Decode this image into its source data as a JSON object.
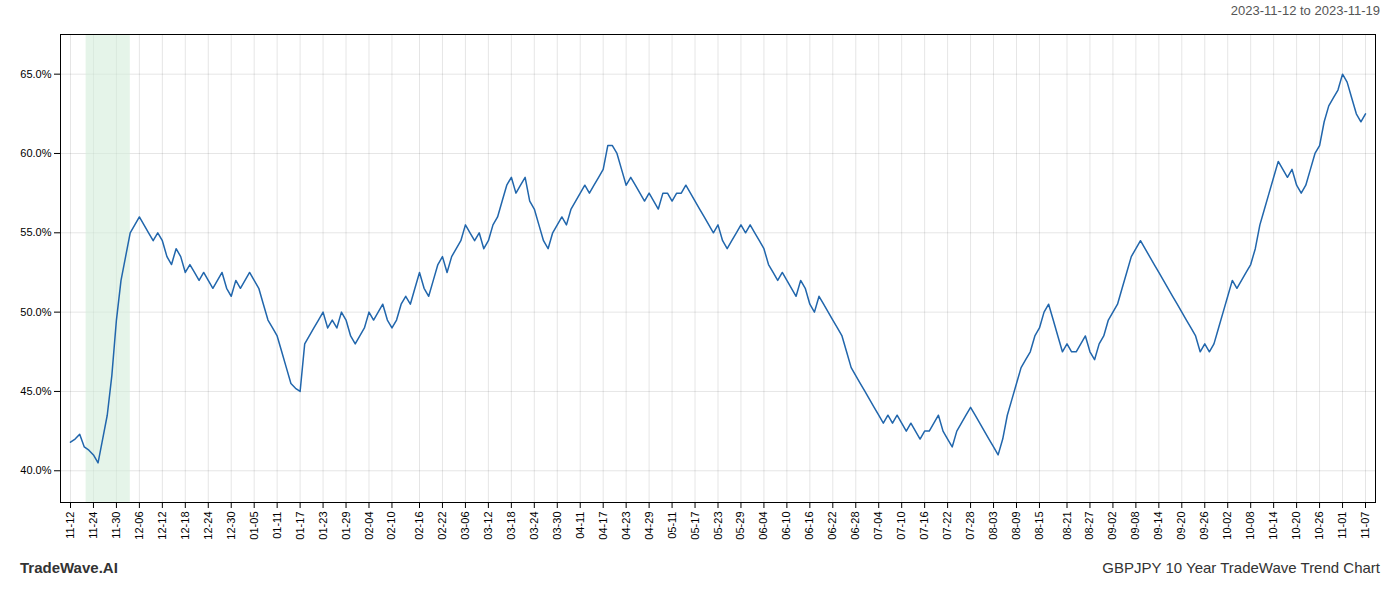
{
  "chart_data": {
    "type": "line",
    "title": "GBPJPY 10 Year TradeWave Trend Chart",
    "subtitle": "2023-11-12 to 2023-11-19",
    "annotations": [
      "TradeWave.AI"
    ],
    "color": "#2166ac",
    "grid": true,
    "highlight": {
      "x": [
        3.396,
        13.018
      ],
      "color": "#d4edda"
    },
    "ylim": [
      38.0,
      67.5
    ],
    "yticks": [
      {
        "value": 40.0,
        "label": "40.0%"
      },
      {
        "value": 45.0,
        "label": "45.0%"
      },
      {
        "value": 50.0,
        "label": "50.0%"
      },
      {
        "value": 55.0,
        "label": "55.0%"
      },
      {
        "value": 60.0,
        "label": "60.0%"
      },
      {
        "value": 65.0,
        "label": "65.0%"
      }
    ],
    "categories": [
      "11-12",
      null,
      null,
      null,
      null,
      "11-24",
      null,
      null,
      null,
      null,
      "11-30",
      null,
      null,
      null,
      null,
      "12-06",
      null,
      null,
      null,
      null,
      "12-12",
      null,
      null,
      null,
      null,
      "12-18",
      null,
      null,
      null,
      null,
      "12-24",
      null,
      null,
      null,
      null,
      "12-30",
      null,
      null,
      null,
      null,
      "01-05",
      null,
      null,
      null,
      null,
      "01-11",
      null,
      null,
      null,
      null,
      "01-17",
      null,
      null,
      null,
      null,
      "01-23",
      null,
      null,
      null,
      null,
      "01-29",
      null,
      null,
      null,
      null,
      "02-04",
      null,
      null,
      null,
      null,
      "02-10",
      null,
      null,
      null,
      null,
      null,
      "02-16",
      null,
      null,
      null,
      null,
      "02-22",
      null,
      null,
      null,
      null,
      "03-06",
      null,
      null,
      null,
      null,
      "03-12",
      null,
      null,
      null,
      null,
      "03-18",
      null,
      null,
      null,
      null,
      "03-24",
      null,
      null,
      null,
      null,
      "03-30",
      null,
      null,
      null,
      null,
      "04-11",
      null,
      null,
      null,
      null,
      "04-17",
      null,
      null,
      null,
      null,
      "04-23",
      null,
      null,
      null,
      null,
      "04-29",
      null,
      null,
      null,
      null,
      "05-11",
      null,
      null,
      null,
      null,
      "05-17",
      null,
      null,
      null,
      null,
      "05-23",
      null,
      null,
      null,
      null,
      "05-29",
      null,
      null,
      null,
      null,
      "06-04",
      null,
      null,
      null,
      null,
      "06-10",
      null,
      null,
      null,
      null,
      "06-16",
      null,
      null,
      null,
      null,
      "06-22",
      null,
      null,
      null,
      null,
      "06-28",
      null,
      null,
      null,
      null,
      "07-04",
      null,
      null,
      null,
      null,
      "07-10",
      null,
      null,
      null,
      null,
      "07-16",
      null,
      null,
      null,
      null,
      "07-22",
      null,
      null,
      null,
      null,
      "07-28",
      null,
      null,
      null,
      null,
      "08-03",
      null,
      null,
      null,
      null,
      "08-09",
      null,
      null,
      null,
      null,
      "08-15",
      null,
      null,
      null,
      null,
      null,
      "08-21",
      null,
      null,
      null,
      null,
      "08-27",
      null,
      null,
      null,
      null,
      "09-02",
      null,
      null,
      null,
      null,
      "09-08",
      null,
      null,
      null,
      null,
      "09-14",
      null,
      null,
      null,
      null,
      "09-20",
      null,
      null,
      null,
      null,
      "09-26",
      null,
      null,
      null,
      null,
      "10-02",
      null,
      null,
      null,
      null,
      "10-08",
      null,
      null,
      null,
      null,
      "10-14",
      null,
      null,
      null,
      null,
      "10-20",
      null,
      null,
      null,
      null,
      "10-26",
      null,
      null,
      null,
      null,
      "11-01",
      null,
      null,
      null,
      null,
      "11-07"
    ],
    "values": [
      41.8,
      42.0,
      42.3,
      41.5,
      41.3,
      41.0,
      40.5,
      42.0,
      43.5,
      46.0,
      49.5,
      52.0,
      53.5,
      55.0,
      55.5,
      56.0,
      55.5,
      55.0,
      54.5,
      55.0,
      54.5,
      53.5,
      53.0,
      54.0,
      53.5,
      52.5,
      53.0,
      52.5,
      52.0,
      52.5,
      52.0,
      51.5,
      52.0,
      52.5,
      51.5,
      51.0,
      52.0,
      51.5,
      52.0,
      52.5,
      52.0,
      51.5,
      50.5,
      49.5,
      49.0,
      48.5,
      47.5,
      46.5,
      45.5,
      45.2,
      45.0,
      48.0,
      48.5,
      49.0,
      49.5,
      50.0,
      49.0,
      49.5,
      49.0,
      50.0,
      49.5,
      48.5,
      48.0,
      48.5,
      49.0,
      50.0,
      49.5,
      50.0,
      50.5,
      49.5,
      49.0,
      49.5,
      50.5,
      51.0,
      50.5,
      51.5,
      52.5,
      51.5,
      51.0,
      52.0,
      53.0,
      53.5,
      52.5,
      53.5,
      54.0,
      54.5,
      55.5,
      55.0,
      54.5,
      55.0,
      54.0,
      54.5,
      55.5,
      56.0,
      57.0,
      58.0,
      58.5,
      57.5,
      58.0,
      58.5,
      57.0,
      56.5,
      55.5,
      54.5,
      54.0,
      55.0,
      55.5,
      56.0,
      55.5,
      56.5,
      57.0,
      57.5,
      58.0,
      57.5,
      58.0,
      58.5,
      59.0,
      60.5,
      60.5,
      60.0,
      59.0,
      58.0,
      58.5,
      58.0,
      57.5,
      57.0,
      57.5,
      57.0,
      56.5,
      57.5,
      57.5,
      57.0,
      57.5,
      57.5,
      58.0,
      57.5,
      57.0,
      56.5,
      56.0,
      55.5,
      55.0,
      55.5,
      54.5,
      54.0,
      54.5,
      55.0,
      55.5,
      55.0,
      55.5,
      55.0,
      54.5,
      54.0,
      53.0,
      52.5,
      52.0,
      52.5,
      52.0,
      51.5,
      51.0,
      52.0,
      51.5,
      50.5,
      50.0,
      51.0,
      50.5,
      50.0,
      49.5,
      49.0,
      48.5,
      47.5,
      46.5,
      46.0,
      45.5,
      45.0,
      44.5,
      44.0,
      43.5,
      43.0,
      43.5,
      43.0,
      43.5,
      43.0,
      42.5,
      43.0,
      42.5,
      42.0,
      42.5,
      42.5,
      43.0,
      43.5,
      42.5,
      42.0,
      41.5,
      42.5,
      43.0,
      43.5,
      44.0,
      43.5,
      43.0,
      42.5,
      42.0,
      41.5,
      41.0,
      42.0,
      43.5,
      44.5,
      45.5,
      46.5,
      47.0,
      47.5,
      48.5,
      49.0,
      50.0,
      50.5,
      49.5,
      48.5,
      47.5,
      48.0,
      47.5,
      47.5,
      48.0,
      48.5,
      47.5,
      47.0,
      48.0,
      48.5,
      49.5,
      50.0,
      50.5,
      51.5,
      52.5,
      53.5,
      54.0,
      54.5,
      54.0,
      53.5,
      53.0,
      52.5,
      52.0,
      51.5,
      51.0,
      50.5,
      50.0,
      49.5,
      49.0,
      48.5,
      47.5,
      48.0,
      47.5,
      48.0,
      49.0,
      50.0,
      51.0,
      52.0,
      51.5,
      52.0,
      52.5,
      53.0,
      54.0,
      55.5,
      56.5,
      57.5,
      58.5,
      59.5,
      59.0,
      58.5,
      59.0,
      58.0,
      57.5,
      58.0,
      59.0,
      60.0,
      60.5,
      62.0,
      63.0,
      63.5,
      64.0,
      65.0,
      64.5,
      63.5,
      62.5,
      62.0,
      62.5
    ]
  }
}
